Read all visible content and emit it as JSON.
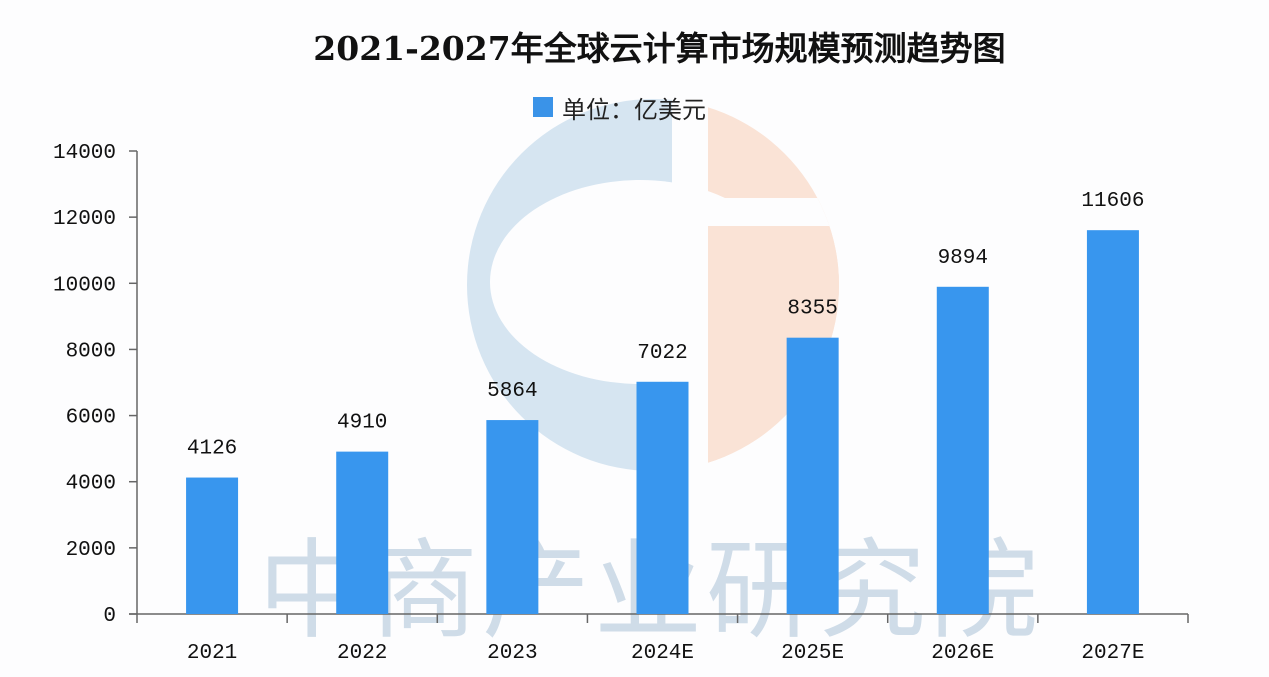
{
  "title": "2021-2027年全球云计算市场规模预测趋势图",
  "legend": {
    "label": "单位：亿美元",
    "color": "#3a93e8"
  },
  "watermark": {
    "text": "中商产业研究院",
    "logo_colors": {
      "left": "#d6e5f1",
      "right": "#fae3d6"
    }
  },
  "colors": {
    "bar": "#3896ee",
    "axis": "#666666",
    "text": "#111111"
  },
  "chart_data": {
    "type": "bar",
    "title": "2021-2027年全球云计算市场规模预测趋势图",
    "xlabel": "",
    "ylabel": "",
    "legend": [
      "单位：亿美元"
    ],
    "legend_position": "top",
    "grid": false,
    "categories": [
      "2021",
      "2022",
      "2023",
      "2024E",
      "2025E",
      "2026E",
      "2027E"
    ],
    "values": [
      4126,
      4910,
      5864,
      7022,
      8355,
      9894,
      11606
    ],
    "data_labels": [
      "4126",
      "4910",
      "5864",
      "7022",
      "8355",
      "9894",
      "11606"
    ],
    "ylim": [
      0,
      14000
    ],
    "yticks": [
      0,
      2000,
      4000,
      6000,
      8000,
      10000,
      12000,
      14000
    ],
    "ytick_labels": [
      "0",
      "2000",
      "4000",
      "6000",
      "8000",
      "10000",
      "12000",
      "14000"
    ]
  }
}
